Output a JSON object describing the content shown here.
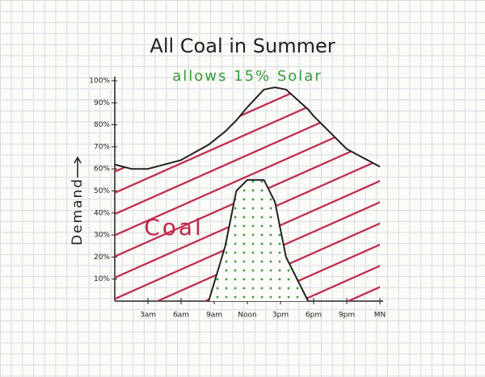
{
  "chart_data": {
    "type": "area",
    "title": "All Coal in Summer",
    "subtitle": "allows 15% Solar",
    "y_label": "Demand",
    "x": [
      0,
      1.5,
      3,
      6,
      8.5,
      10,
      11,
      12,
      13.5,
      14.5,
      15.5,
      17.5,
      18,
      21,
      24
    ],
    "series": [
      {
        "name": "Coal",
        "color": "#c0284a",
        "values": [
          62,
          60,
          60,
          64,
          71,
          77,
          82,
          88,
          96,
          97,
          96,
          87,
          84,
          69,
          61
        ]
      },
      {
        "color": "#3a9a3a",
        "values": [
          null,
          null,
          null,
          null,
          0,
          25,
          50,
          55,
          55,
          45,
          20,
          0,
          null,
          null,
          null
        ]
      }
    ],
    "xlim": [
      0,
      24
    ],
    "xticks": [
      {
        "value": 3,
        "label": "3am"
      },
      {
        "value": 6,
        "label": "6am"
      },
      {
        "value": 9,
        "label": "9am"
      },
      {
        "value": 12,
        "label": "Noon"
      },
      {
        "value": 15,
        "label": "3pm"
      },
      {
        "value": 18,
        "label": "6pm"
      },
      {
        "value": 21,
        "label": "9pm"
      },
      {
        "value": 24,
        "label": "MN"
      }
    ],
    "ylim": [
      0,
      100
    ],
    "yticks": [
      {
        "value": 10,
        "label": "10%"
      },
      {
        "value": 20,
        "label": "20%"
      },
      {
        "value": 30,
        "label": "30%"
      },
      {
        "value": 40,
        "label": "40%"
      },
      {
        "value": 50,
        "label": "50%"
      },
      {
        "value": 60,
        "label": "60%"
      },
      {
        "value": 70,
        "label": "70%"
      },
      {
        "value": 80,
        "label": "80%"
      },
      {
        "value": 90,
        "label": "90%"
      },
      {
        "value": 100,
        "label": "100%"
      }
    ]
  }
}
